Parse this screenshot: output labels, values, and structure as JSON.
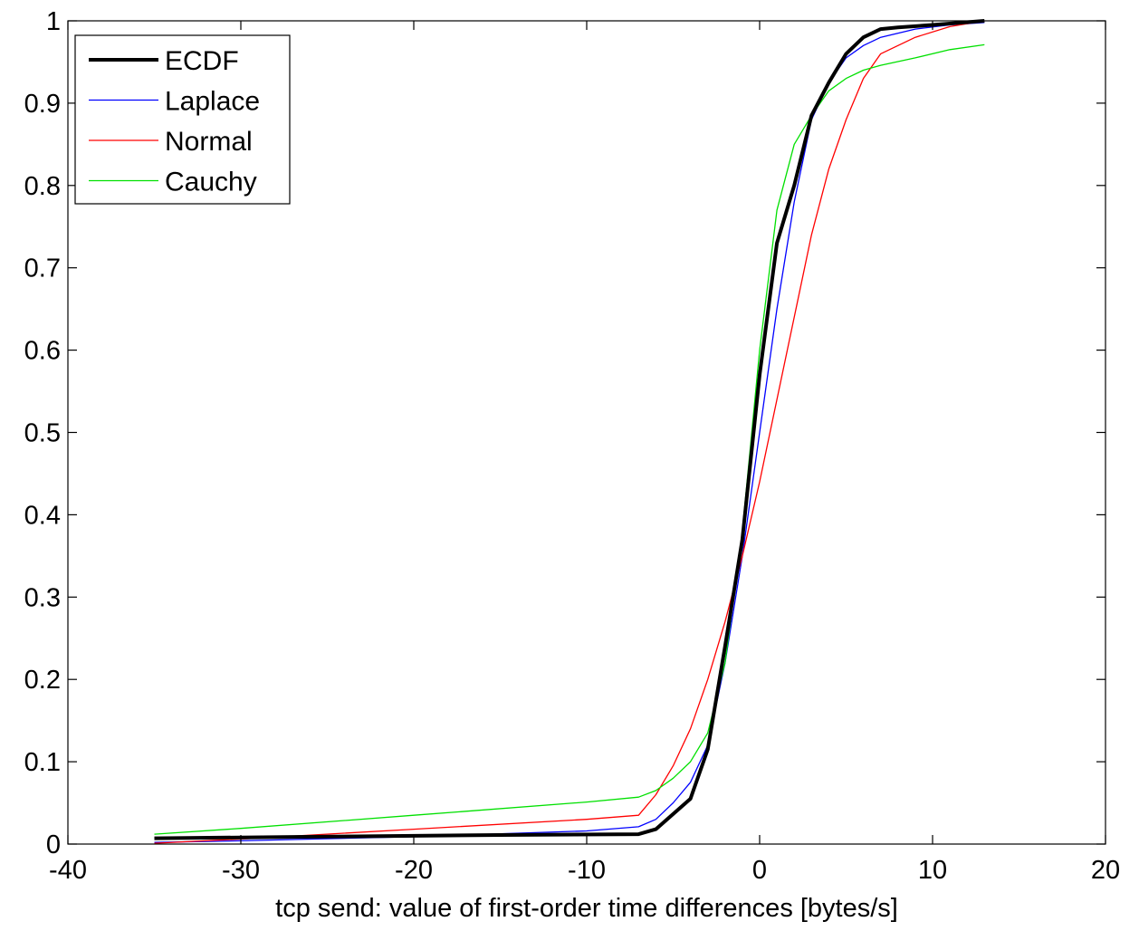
{
  "chart_data": {
    "type": "line",
    "title": "",
    "xlabel": "tcp send: value of first-order time differences [bytes/s]",
    "ylabel": "",
    "xlim": [
      -40,
      20
    ],
    "ylim": [
      0,
      1
    ],
    "xticks": [
      -40,
      -30,
      -20,
      -10,
      0,
      10,
      20
    ],
    "yticks": [
      0,
      0.1,
      0.2,
      0.3,
      0.4,
      0.5,
      0.6,
      0.7,
      0.8,
      0.9,
      1
    ],
    "xtick_labels": [
      "-40",
      "-30",
      "-20",
      "-10",
      "0",
      "10",
      "20"
    ],
    "ytick_labels": [
      "0",
      "0.1",
      "0.2",
      "0.3",
      "0.4",
      "0.5",
      "0.6",
      "0.7",
      "0.8",
      "0.9",
      "1"
    ],
    "grid": false,
    "legend_position": "top-left",
    "series": [
      {
        "name": "ECDF",
        "color": "#000000",
        "style": "thick",
        "x": [
          -35,
          -25,
          -15,
          -7,
          -6,
          -4,
          -3,
          -2,
          -1,
          0,
          1,
          2,
          3,
          4,
          5,
          6,
          7,
          8,
          10,
          13
        ],
        "y": [
          0.007,
          0.009,
          0.011,
          0.012,
          0.018,
          0.055,
          0.115,
          0.24,
          0.37,
          0.57,
          0.73,
          0.8,
          0.885,
          0.925,
          0.96,
          0.98,
          0.99,
          0.992,
          0.995,
          1.0
        ]
      },
      {
        "name": "Laplace",
        "color": "#0000ff",
        "style": "thin",
        "x": [
          -35,
          -30,
          -20,
          -10,
          -7,
          -6,
          -5,
          -4,
          -3,
          -2,
          -1,
          0,
          1,
          2,
          3,
          4,
          5,
          6,
          7,
          9,
          11,
          13
        ],
        "y": [
          0.002,
          0.004,
          0.009,
          0.016,
          0.021,
          0.03,
          0.05,
          0.075,
          0.12,
          0.22,
          0.35,
          0.5,
          0.65,
          0.78,
          0.88,
          0.925,
          0.955,
          0.97,
          0.98,
          0.99,
          0.995,
          0.998
        ]
      },
      {
        "name": "Normal",
        "color": "#ff0000",
        "style": "thin",
        "x": [
          -35,
          -30,
          -20,
          -10,
          -7,
          -6,
          -5,
          -4,
          -3,
          -2,
          -1,
          0,
          1,
          2,
          3,
          4,
          5,
          6,
          7,
          9,
          11,
          13
        ],
        "y": [
          0.001,
          0.006,
          0.018,
          0.03,
          0.035,
          0.06,
          0.095,
          0.14,
          0.2,
          0.27,
          0.35,
          0.44,
          0.54,
          0.64,
          0.74,
          0.82,
          0.88,
          0.93,
          0.96,
          0.98,
          0.993,
          1.0
        ]
      },
      {
        "name": "Cauchy",
        "color": "#00e000",
        "style": "thin",
        "x": [
          -35,
          -30,
          -20,
          -10,
          -7,
          -6,
          -5,
          -4,
          -3,
          -2,
          -1,
          0,
          1,
          2,
          3,
          4,
          5,
          6,
          7,
          9,
          11,
          13
        ],
        "y": [
          0.012,
          0.019,
          0.035,
          0.051,
          0.057,
          0.065,
          0.08,
          0.1,
          0.135,
          0.22,
          0.38,
          0.6,
          0.77,
          0.85,
          0.885,
          0.915,
          0.93,
          0.94,
          0.946,
          0.955,
          0.965,
          0.971
        ]
      }
    ]
  }
}
